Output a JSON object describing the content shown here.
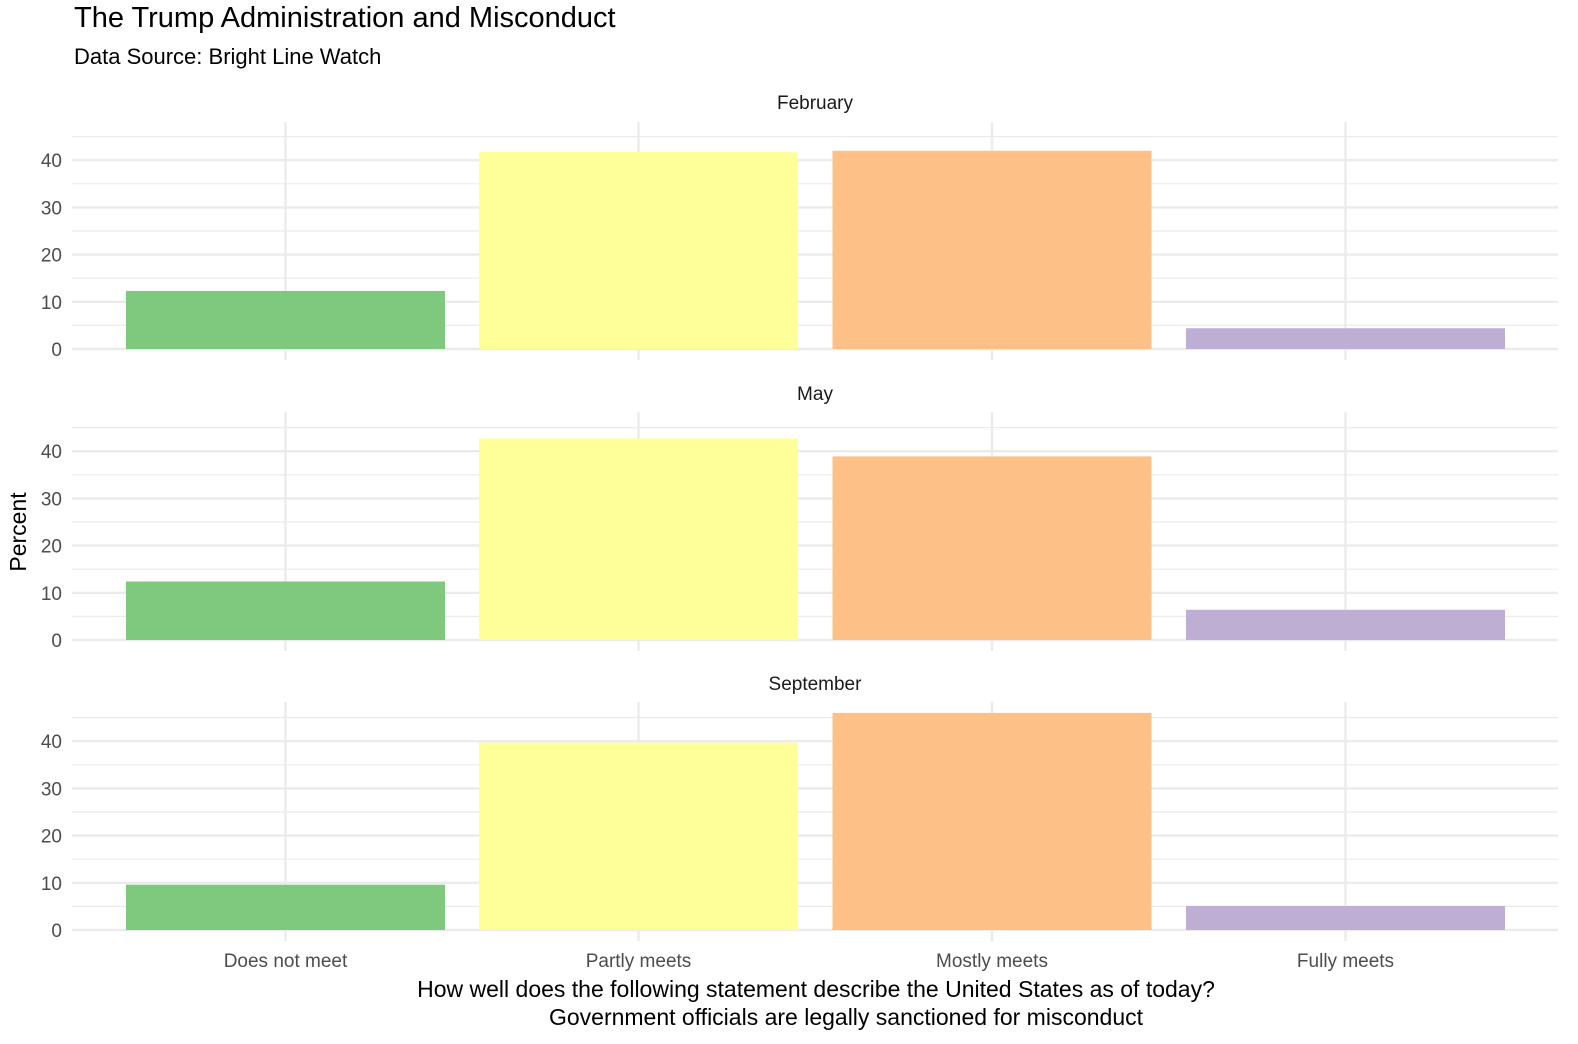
{
  "chart_data": {
    "type": "bar",
    "title": "The Trump Administration and Misconduct",
    "subtitle": "Data Source: Bright Line Watch",
    "xlabel_lines": [
      "How well does the following statement describe the United States as of today?",
      "Government officials are legally sanctioned for misconduct"
    ],
    "ylabel": "Percent",
    "categories": [
      "Does not meet",
      "Partly meets",
      "Mostly meets",
      "Fully meets"
    ],
    "colors": [
      "#7fc97f",
      "#ffff99",
      "#fdc086",
      "#beaed4"
    ],
    "ylim": [
      0,
      47
    ],
    "yticks": [
      0,
      10,
      20,
      30,
      40
    ],
    "grid": true,
    "legend": "none",
    "facets": [
      {
        "name": "February",
        "values": [
          12.3,
          41.7,
          42.0,
          4.4
        ]
      },
      {
        "name": "May",
        "values": [
          12.4,
          42.7,
          38.9,
          6.4
        ]
      },
      {
        "name": "September",
        "values": [
          9.6,
          39.7,
          46.0,
          5.1
        ]
      }
    ]
  }
}
